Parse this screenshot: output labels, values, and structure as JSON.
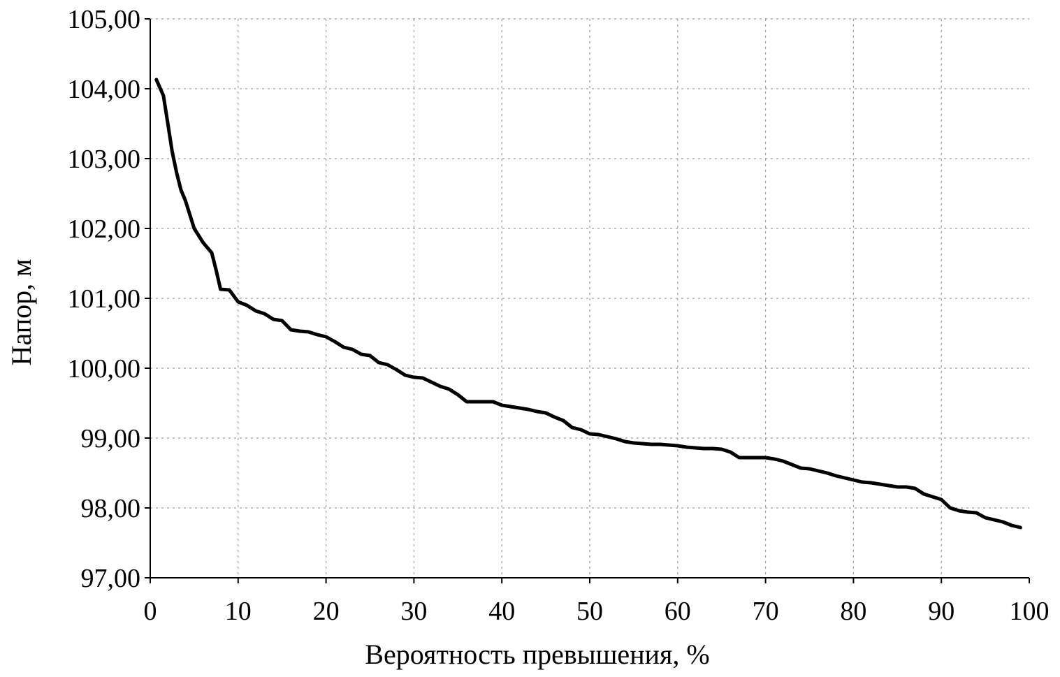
{
  "chart_data": {
    "type": "line",
    "title": "",
    "xlabel": "Вероятность превышения, %",
    "ylabel": "Напор, м",
    "xlim": [
      0,
      100
    ],
    "ylim": [
      97,
      105
    ],
    "grid": true,
    "legend": "none",
    "x_tick_labels": [
      "0",
      "10",
      "20",
      "30",
      "40",
      "50",
      "60",
      "70",
      "80",
      "90",
      "100"
    ],
    "y_tick_labels": [
      "97,00",
      "98,00",
      "99,00",
      "100,00",
      "101,00",
      "102,00",
      "103,00",
      "104,00",
      "105,00"
    ],
    "x_ticks": [
      0,
      10,
      20,
      30,
      40,
      50,
      60,
      70,
      80,
      90,
      100
    ],
    "y_ticks": [
      97,
      98,
      99,
      100,
      101,
      102,
      103,
      104,
      105
    ],
    "line_color": "#000000",
    "series": [
      {
        "x": [
          0.7,
          1.5,
          2,
          2.5,
          3,
          3.5,
          4,
          5,
          6,
          7,
          7.5,
          8,
          9,
          10,
          11,
          12,
          13,
          14,
          15,
          16,
          17,
          18,
          19,
          20,
          21,
          22,
          23,
          24,
          25,
          26,
          27,
          28,
          29,
          30,
          31,
          32,
          33,
          34,
          35,
          36,
          37,
          38,
          39,
          40,
          41,
          42,
          43,
          44,
          45,
          46,
          47,
          48,
          49,
          50,
          51,
          52,
          53,
          54,
          55,
          56,
          57,
          58,
          59,
          60,
          61,
          62,
          63,
          64,
          65,
          66,
          67,
          68,
          69,
          70,
          71,
          72,
          73,
          74,
          75,
          76,
          77,
          78,
          79,
          80,
          81,
          82,
          83,
          84,
          85,
          86,
          87,
          88,
          89,
          90,
          91,
          92,
          93,
          94,
          95,
          96,
          97,
          98,
          99
        ],
        "values": [
          104.13,
          103.9,
          103.5,
          103.1,
          102.8,
          102.55,
          102.4,
          102.0,
          101.8,
          101.65,
          101.4,
          101.13,
          101.12,
          100.95,
          100.9,
          100.82,
          100.78,
          100.7,
          100.68,
          100.55,
          100.53,
          100.52,
          100.48,
          100.45,
          100.38,
          100.3,
          100.27,
          100.2,
          100.18,
          100.08,
          100.05,
          99.98,
          99.9,
          99.87,
          99.86,
          99.8,
          99.74,
          99.7,
          99.62,
          99.52,
          99.52,
          99.52,
          99.52,
          99.47,
          99.45,
          99.43,
          99.41,
          99.38,
          99.36,
          99.3,
          99.25,
          99.15,
          99.12,
          99.06,
          99.05,
          99.02,
          98.99,
          98.95,
          98.93,
          98.92,
          98.91,
          98.91,
          98.9,
          98.89,
          98.87,
          98.86,
          98.85,
          98.85,
          98.84,
          98.8,
          98.72,
          98.72,
          98.72,
          98.72,
          98.7,
          98.67,
          98.62,
          98.57,
          98.56,
          98.53,
          98.5,
          98.46,
          98.43,
          98.4,
          98.37,
          98.36,
          98.34,
          98.32,
          98.3,
          98.3,
          98.28,
          98.2,
          98.16,
          98.12,
          98.0,
          97.96,
          97.94,
          97.93,
          97.86,
          97.83,
          97.8,
          97.75,
          97.72
        ]
      }
    ]
  }
}
